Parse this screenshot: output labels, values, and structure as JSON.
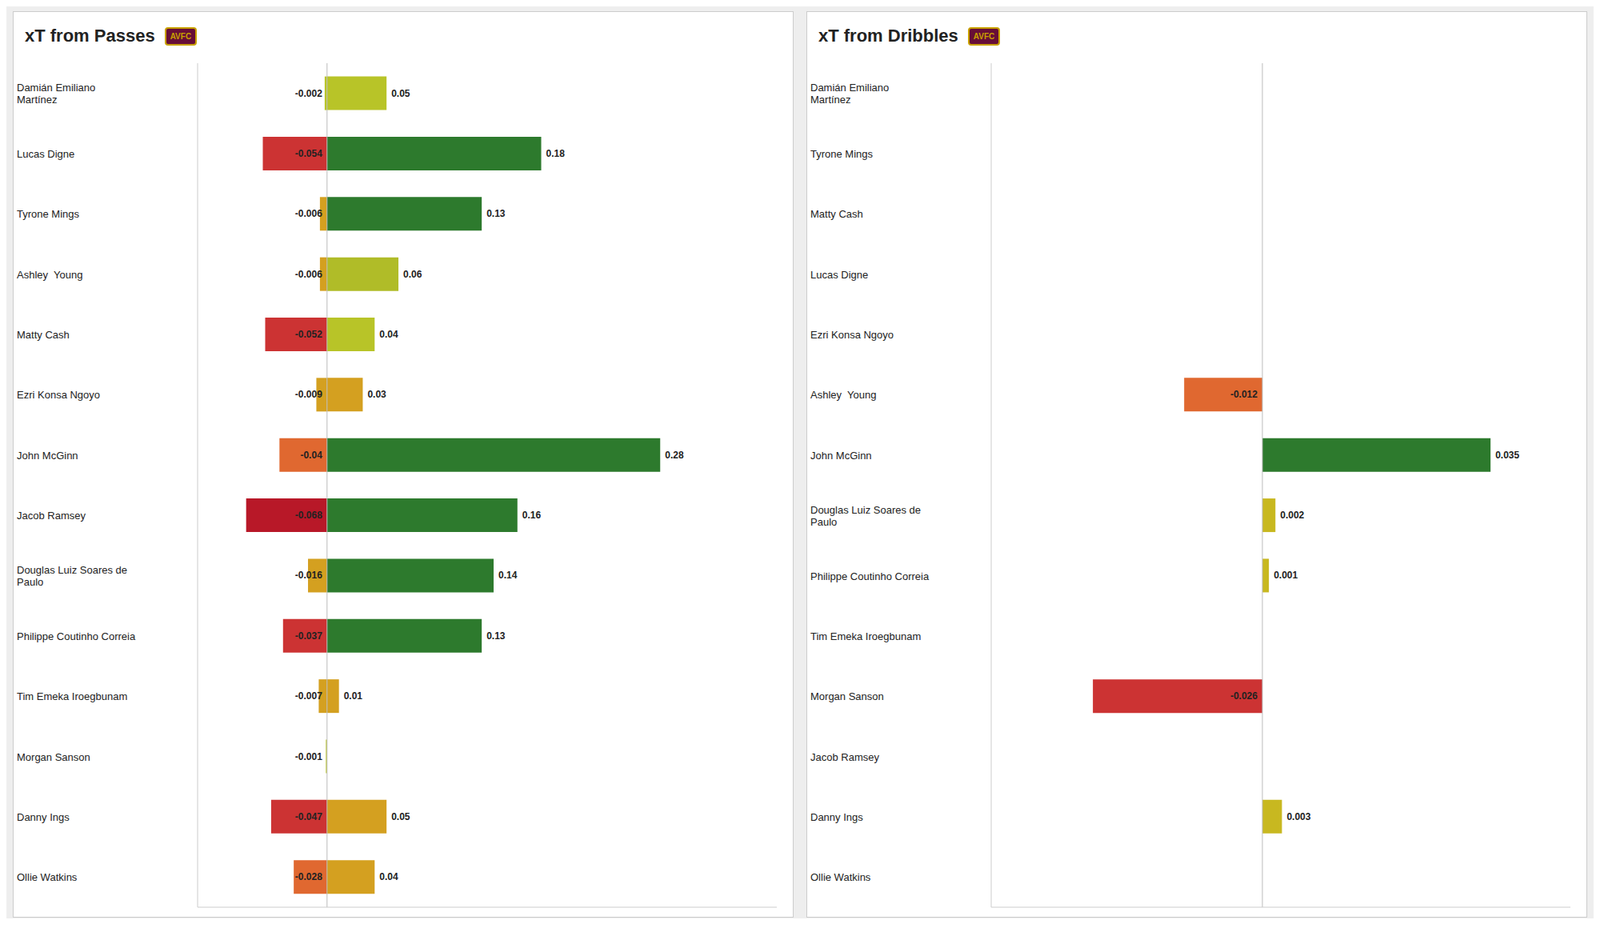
{
  "chart_data": [
    {
      "type": "bar",
      "orientation": "horizontal",
      "stacked": true,
      "title": "xT from Passes",
      "annotations": [
        "AVFC"
      ],
      "categories": [
        "Damián Emiliano\nMartínez",
        "Lucas Digne",
        "Tyrone Mings",
        "Ashley  Young",
        "Matty Cash",
        "Ezri Konsa Ngoyo",
        "John McGinn",
        "Jacob Ramsey",
        "Douglas Luiz Soares de\nPaulo",
        "Philippe Coutinho Correia",
        "Tim Emeka Iroegbunam",
        "Morgan Sanson",
        "Danny Ings",
        "Ollie Watkins"
      ],
      "series": [
        {
          "values": [
            -0.002,
            -0.054,
            -0.006,
            -0.006,
            -0.052,
            -0.009,
            -0.04,
            -0.068,
            -0.016,
            -0.037,
            -0.007,
            -0.001,
            -0.047,
            -0.028
          ],
          "colors": [
            "#b8c428",
            "#cc3333",
            "#d4a020",
            "#d4a020",
            "#cc3333",
            "#d4a020",
            "#e06830",
            "#b81828",
            "#d4a020",
            "#cc3333",
            "#d4a020",
            "#b8c428",
            "#cc3333",
            "#e06830"
          ]
        },
        {
          "values": [
            0.05,
            0.18,
            0.13,
            0.06,
            0.04,
            0.03,
            0.28,
            0.16,
            0.14,
            0.13,
            0.01,
            0.0,
            0.05,
            0.04
          ],
          "colors": [
            "#b8c428",
            "#2d7a2d",
            "#2d7a2d",
            "#b0bc28",
            "#b8c428",
            "#d4a020",
            "#2d7a2d",
            "#2d7a2d",
            "#2d7a2d",
            "#2d7a2d",
            "#d4a020",
            "#b8c428",
            "#d4a020",
            "#d4a020"
          ]
        }
      ],
      "xlim": [
        -0.1088,
        0.378
      ],
      "tick_labels": false,
      "grid": false,
      "data_labels": true
    },
    {
      "type": "bar",
      "orientation": "horizontal",
      "stacked": true,
      "title": "xT from Dribbles",
      "annotations": [
        "AVFC"
      ],
      "categories": [
        "Damián Emiliano\nMartínez",
        "Tyrone Mings",
        "Matty Cash",
        "Lucas Digne",
        "Ezri Konsa Ngoyo",
        "Ashley  Young",
        "John McGinn",
        "Douglas Luiz Soares de\nPaulo",
        "Philippe Coutinho Correia",
        "Tim Emeka Iroegbunam",
        "Morgan Sanson",
        "Jacob Ramsey",
        "Danny Ings",
        "Ollie Watkins"
      ],
      "series": [
        {
          "values": [
            0,
            0,
            0,
            0,
            0,
            -0.012,
            0,
            0,
            0,
            0,
            -0.026,
            0,
            0,
            0
          ],
          "colors": [
            "#b8c428",
            "#b8c428",
            "#b8c428",
            "#b8c428",
            "#b8c428",
            "#e06830",
            "#b8c428",
            "#b8c428",
            "#b8c428",
            "#b8c428",
            "#cc3333",
            "#b8c428",
            "#b8c428",
            "#b8c428"
          ]
        },
        {
          "values": [
            0,
            0,
            0,
            0,
            0,
            0,
            0.035,
            0.002,
            0.001,
            0,
            0,
            0,
            0.003,
            0
          ],
          "colors": [
            "#b8c428",
            "#b8c428",
            "#b8c428",
            "#b8c428",
            "#b8c428",
            "#b8c428",
            "#2d7a2d",
            "#c8b820",
            "#c8b820",
            "#b8c428",
            "#b8c428",
            "#b8c428",
            "#c8b820",
            "#b8c428"
          ]
        }
      ],
      "xlim": [
        -0.0416,
        0.04725
      ],
      "tick_labels": false,
      "grid": false,
      "data_labels": true
    }
  ]
}
